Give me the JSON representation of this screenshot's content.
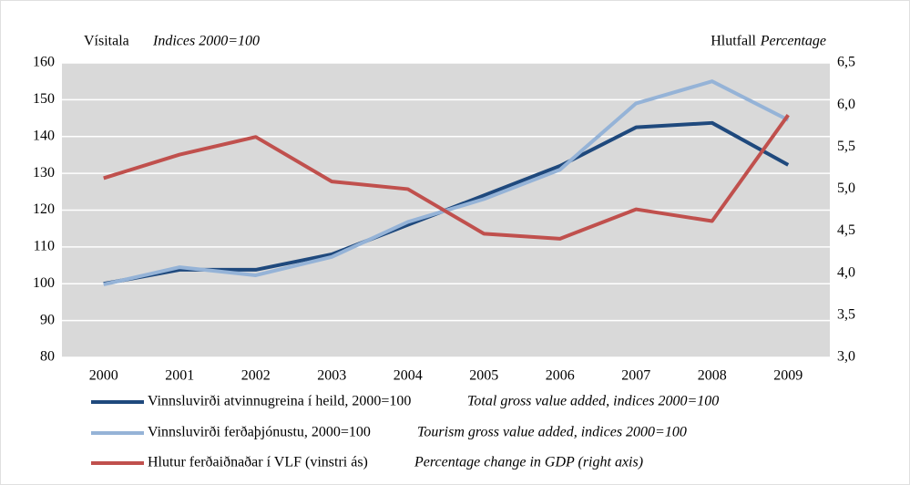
{
  "chart_data": {
    "type": "line",
    "y_label": "Vísitala",
    "y_label_note": "Indices 2000=100",
    "y2_label": "Hlutfall",
    "y2_label_note": "Percentage",
    "categories": [
      "2000",
      "2001",
      "2002",
      "2003",
      "2004",
      "2005",
      "2006",
      "2007",
      "2008",
      "2009"
    ],
    "series": [
      {
        "name": "Vinnsluvirði atvinnugreina í heild, 2000=100",
        "note": "Total gross value added, indices 2000=100",
        "color": "#1f497d",
        "values": [
          100,
          103.8,
          103.8,
          108,
          116,
          124,
          132,
          142.5,
          143.7,
          132.3
        ]
      },
      {
        "name": "Vinnsluvirði ferðaþjónustu, 2000=100",
        "note": "Tourism gross value added, indices 2000=100",
        "color": "#95b3d7",
        "values": [
          99.8,
          104.5,
          102.3,
          107.3,
          116.8,
          123,
          131,
          149,
          155,
          144.5
        ]
      },
      {
        "name": "Hlutur ferðaiðnaðar í VLF (vinstri ás)",
        "note": "Percentage change in GDP (right axis)",
        "color": "#c0504d",
        "axis": "y2",
        "values": [
          5.13,
          5.41,
          5.62,
          5.09,
          5.0,
          4.47,
          4.41,
          4.76,
          4.62,
          5.88
        ]
      }
    ],
    "ylim": [
      80,
      160
    ],
    "yticks": [
      80,
      90,
      100,
      110,
      120,
      130,
      140,
      150,
      160
    ],
    "y2lim": [
      3.0,
      6.5
    ],
    "y2ticks": [
      {
        "value": 3.0,
        "label": "3,0"
      },
      {
        "value": 3.5,
        "label": "3,5"
      },
      {
        "value": 4.0,
        "label": "4,0"
      },
      {
        "value": 4.5,
        "label": "4,5"
      },
      {
        "value": 5.0,
        "label": "5,0"
      },
      {
        "value": 5.5,
        "label": "5,5"
      },
      {
        "value": 6.0,
        "label": "6,0"
      },
      {
        "value": 6.5,
        "label": "6,5"
      }
    ],
    "grid": true,
    "plot_background": "#d9d9d9",
    "grid_color": "#ffffff"
  }
}
